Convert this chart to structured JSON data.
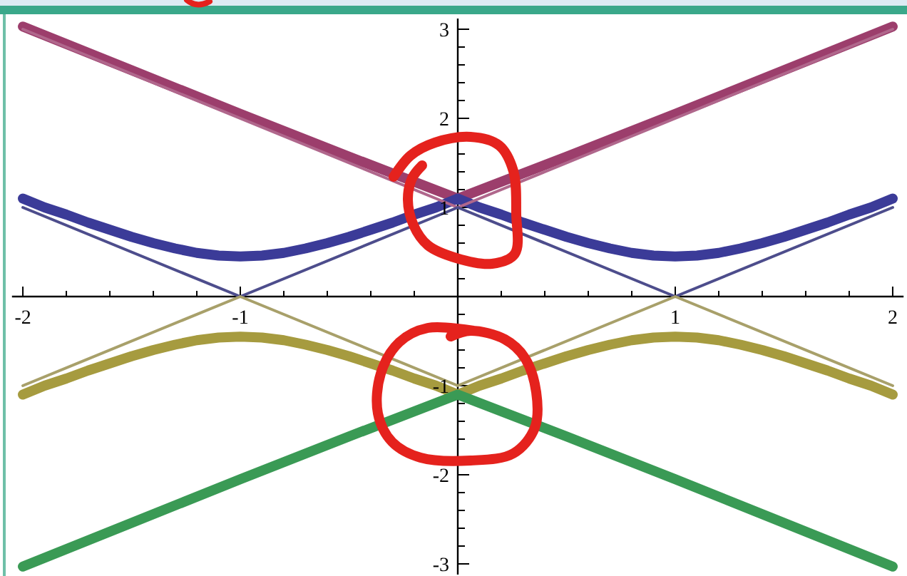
{
  "chart_data": {
    "type": "line",
    "xlim": [
      -2.05,
      2.05
    ],
    "ylim": [
      -3.12,
      3.12
    ],
    "xticks": [
      -2,
      {
        "value": -1.8,
        "label": null
      },
      {
        "value": -1.6,
        "label": null
      },
      {
        "value": -1.4,
        "label": null
      },
      {
        "value": -1.2,
        "label": null
      },
      -1,
      {
        "value": -0.8,
        "label": null
      },
      {
        "value": -0.6,
        "label": null
      },
      {
        "value": -0.4,
        "label": null
      },
      {
        "value": -0.2,
        "label": null
      },
      {
        "value": 0.2,
        "label": null
      },
      {
        "value": 0.4,
        "label": null
      },
      {
        "value": 0.6,
        "label": null
      },
      {
        "value": 0.8,
        "label": null
      },
      1,
      {
        "value": 1.2,
        "label": null
      },
      {
        "value": 1.4,
        "label": null
      },
      {
        "value": 1.6,
        "label": null
      },
      {
        "value": 1.8,
        "label": null
      },
      2
    ],
    "yticks": [
      -3,
      {
        "value": -2.8,
        "label": null
      },
      {
        "value": -2.6,
        "label": null
      },
      {
        "value": -2.4,
        "label": null
      },
      {
        "value": -2.2,
        "label": null
      },
      -2,
      {
        "value": -1.8,
        "label": null
      },
      {
        "value": -1.6,
        "label": null
      },
      {
        "value": -1.4,
        "label": null
      },
      {
        "value": -1.2,
        "label": null
      },
      -1,
      {
        "value": -0.8,
        "label": null
      },
      {
        "value": -0.6,
        "label": null
      },
      {
        "value": -0.4,
        "label": null
      },
      {
        "value": -0.2,
        "label": null
      },
      {
        "value": 0.2,
        "label": null
      },
      {
        "value": 0.4,
        "label": null
      },
      {
        "value": 0.6,
        "label": null
      },
      {
        "value": 0.8,
        "label": null
      },
      1,
      {
        "value": 1.2,
        "label": null
      },
      {
        "value": 1.4,
        "label": null
      },
      {
        "value": 1.6,
        "label": null
      },
      {
        "value": 1.8,
        "label": null
      },
      2,
      {
        "value": 2.2,
        "label": null
      },
      {
        "value": 2.4,
        "label": null
      },
      {
        "value": 2.6,
        "label": null
      },
      {
        "value": 2.8,
        "label": null
      },
      3
    ],
    "series": [
      {
        "color": "#9c3e6c",
        "x": [
          -2,
          -1.5,
          -1,
          -0.5,
          0,
          0.5,
          1,
          1.5,
          2
        ],
        "values": [
          3.03,
          2.54,
          2.05,
          1.57,
          1.1,
          1.57,
          2.05,
          2.54,
          3.03
        ]
      },
      {
        "color": "#3b3b98",
        "x": [
          -2,
          -1.9,
          -1.8,
          -1.7,
          -1.6,
          -1.5,
          -1.4,
          -1.3,
          -1.2,
          -1.1,
          -1,
          -0.9,
          -0.8,
          -0.7,
          -0.6,
          -0.5,
          -0.4,
          -0.3,
          -0.2,
          -0.1,
          0,
          0.1,
          0.2,
          0.3,
          0.4,
          0.5,
          0.6,
          0.7,
          0.8,
          0.9,
          1,
          1.1,
          1.2,
          1.3,
          1.4,
          1.5,
          1.6,
          1.7,
          1.8,
          1.9,
          2
        ],
        "values": [
          1.1,
          1.0,
          0.92,
          0.83,
          0.75,
          0.67,
          0.6,
          0.54,
          0.49,
          0.46,
          0.45,
          0.46,
          0.49,
          0.54,
          0.6,
          0.67,
          0.75,
          0.83,
          0.92,
          1.0,
          1.1,
          1.0,
          0.92,
          0.83,
          0.75,
          0.67,
          0.6,
          0.54,
          0.49,
          0.46,
          0.45,
          0.46,
          0.49,
          0.54,
          0.6,
          0.67,
          0.75,
          0.83,
          0.92,
          1.0,
          1.1
        ]
      },
      {
        "color": "#a69b3f",
        "x": [
          -2,
          -1.9,
          -1.8,
          -1.7,
          -1.6,
          -1.5,
          -1.4,
          -1.3,
          -1.2,
          -1.1,
          -1,
          -0.9,
          -0.8,
          -0.7,
          -0.6,
          -0.5,
          -0.4,
          -0.3,
          -0.2,
          -0.1,
          0,
          0.1,
          0.2,
          0.3,
          0.4,
          0.5,
          0.6,
          0.7,
          0.8,
          0.9,
          1,
          1.1,
          1.2,
          1.3,
          1.4,
          1.5,
          1.6,
          1.7,
          1.8,
          1.9,
          2
        ],
        "values": [
          -1.1,
          -1.0,
          -0.92,
          -0.83,
          -0.75,
          -0.67,
          -0.6,
          -0.54,
          -0.49,
          -0.46,
          -0.45,
          -0.46,
          -0.49,
          -0.54,
          -0.6,
          -0.67,
          -0.75,
          -0.83,
          -0.92,
          -1.0,
          -1.1,
          -1.0,
          -0.92,
          -0.83,
          -0.75,
          -0.67,
          -0.6,
          -0.54,
          -0.49,
          -0.46,
          -0.45,
          -0.46,
          -0.49,
          -0.54,
          -0.6,
          -0.67,
          -0.75,
          -0.83,
          -0.92,
          -1.0,
          -1.1
        ]
      },
      {
        "color": "#3a9a55",
        "x": [
          -2,
          -1.5,
          -1,
          -0.5,
          0,
          0.5,
          1,
          1.5,
          2
        ],
        "values": [
          -3.03,
          -2.54,
          -2.05,
          -1.57,
          -1.1,
          -1.57,
          -2.05,
          -2.54,
          -3.03
        ]
      },
      {
        "color": "#b0678c",
        "x": [
          -2,
          0,
          2
        ],
        "values": [
          3,
          1,
          3
        ]
      },
      {
        "color": "#4d4d8c",
        "x": [
          -2,
          -1,
          0,
          1,
          2
        ],
        "values": [
          1,
          0,
          1,
          0,
          1
        ]
      },
      {
        "color": "#a8a06a",
        "x": [
          -2,
          -1,
          0,
          1,
          2
        ],
        "values": [
          -1,
          0,
          -1,
          0,
          -1
        ]
      }
    ]
  }
}
